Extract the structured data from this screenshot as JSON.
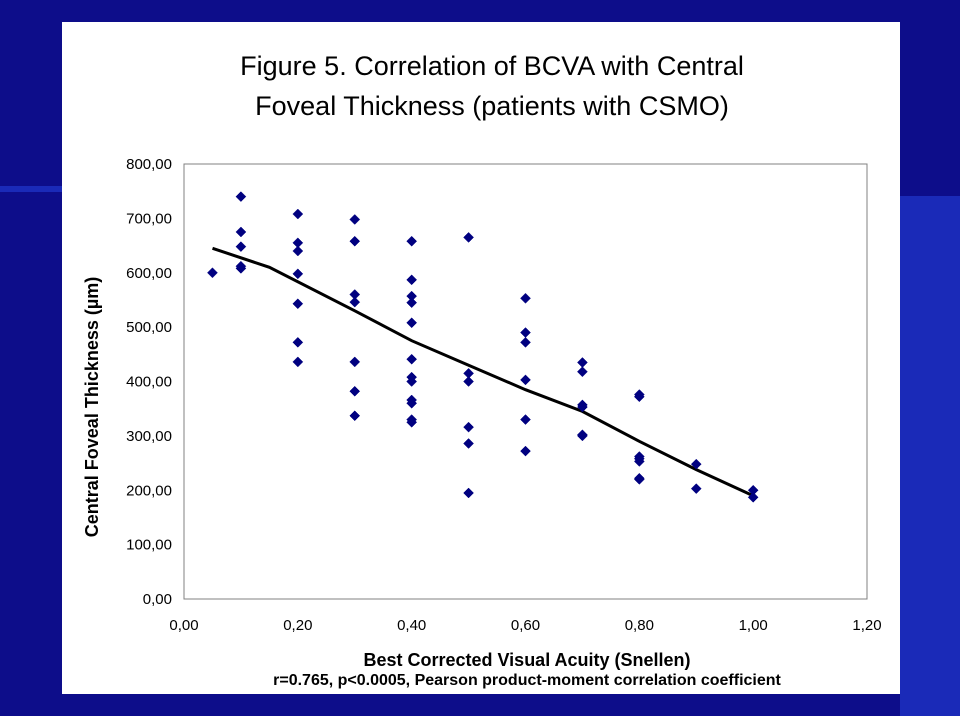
{
  "page": {
    "colors": {
      "background": "#0d0d8a",
      "stripe": "#1a2ab8",
      "marker": "#000080",
      "trend": "#000000"
    }
  },
  "chart_data": {
    "type": "scatter",
    "title_line1": "Figure 5. Correlation of BCVA with Central",
    "title_line2": "Foveal Thickness (patients with CSMO)",
    "xlabel": "Best Corrected Visual Acuity (Snellen)",
    "ylabel": "Central Foveal Thickness (µm)",
    "annotation": "r=0.765, p<0.0005, Pearson product-moment correlation coefficient",
    "xlim": [
      0,
      1.2
    ],
    "ylim": [
      0,
      800
    ],
    "x_ticks": [
      0,
      0.2,
      0.4,
      0.6,
      0.8,
      1.0,
      1.2
    ],
    "x_tick_labels": [
      "0,00",
      "0,20",
      "0,40",
      "0,60",
      "0,80",
      "1,00",
      "1,20"
    ],
    "y_ticks": [
      0,
      100,
      200,
      300,
      400,
      500,
      600,
      700,
      800
    ],
    "y_tick_labels": [
      "0,00",
      "100,00",
      "200,00",
      "300,00",
      "400,00",
      "500,00",
      "600,00",
      "700,00",
      "800,00"
    ],
    "series": [
      {
        "name": "Patients",
        "marker": "diamond",
        "points": [
          [
            0.05,
            600
          ],
          [
            0.1,
            740
          ],
          [
            0.1,
            675
          ],
          [
            0.1,
            648
          ],
          [
            0.1,
            612
          ],
          [
            0.1,
            608
          ],
          [
            0.2,
            708
          ],
          [
            0.2,
            655
          ],
          [
            0.2,
            640
          ],
          [
            0.2,
            598
          ],
          [
            0.2,
            543
          ],
          [
            0.2,
            472
          ],
          [
            0.2,
            436
          ],
          [
            0.3,
            698
          ],
          [
            0.3,
            658
          ],
          [
            0.3,
            560
          ],
          [
            0.3,
            546
          ],
          [
            0.3,
            436
          ],
          [
            0.3,
            382
          ],
          [
            0.3,
            337
          ],
          [
            0.4,
            658
          ],
          [
            0.4,
            587
          ],
          [
            0.4,
            557
          ],
          [
            0.4,
            545
          ],
          [
            0.4,
            508
          ],
          [
            0.4,
            441
          ],
          [
            0.4,
            408
          ],
          [
            0.4,
            400
          ],
          [
            0.4,
            366
          ],
          [
            0.4,
            360
          ],
          [
            0.4,
            330
          ],
          [
            0.4,
            325
          ],
          [
            0.5,
            665
          ],
          [
            0.5,
            415
          ],
          [
            0.5,
            400
          ],
          [
            0.5,
            316
          ],
          [
            0.5,
            286
          ],
          [
            0.5,
            195
          ],
          [
            0.6,
            553
          ],
          [
            0.6,
            490
          ],
          [
            0.6,
            472
          ],
          [
            0.6,
            403
          ],
          [
            0.6,
            330
          ],
          [
            0.6,
            272
          ],
          [
            0.7,
            435
          ],
          [
            0.7,
            418
          ],
          [
            0.7,
            357
          ],
          [
            0.7,
            353
          ],
          [
            0.7,
            302
          ],
          [
            0.7,
            300
          ],
          [
            0.8,
            376
          ],
          [
            0.8,
            372
          ],
          [
            0.8,
            262
          ],
          [
            0.8,
            258
          ],
          [
            0.8,
            253
          ],
          [
            0.8,
            222
          ],
          [
            0.8,
            220
          ],
          [
            0.9,
            248
          ],
          [
            0.9,
            203
          ],
          [
            1.0,
            200
          ],
          [
            1.0,
            187
          ]
        ]
      }
    ],
    "trendline": [
      [
        0.05,
        645
      ],
      [
        0.15,
        610
      ],
      [
        0.3,
        530
      ],
      [
        0.4,
        475
      ],
      [
        0.5,
        430
      ],
      [
        0.6,
        385
      ],
      [
        0.7,
        345
      ],
      [
        0.8,
        290
      ],
      [
        0.9,
        238
      ],
      [
        1.0,
        190
      ]
    ]
  }
}
